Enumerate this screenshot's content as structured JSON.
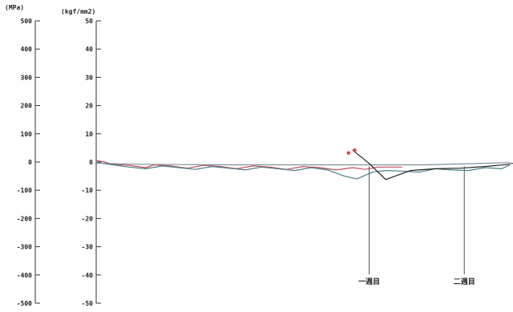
{
  "chart_data": {
    "type": "line",
    "title": "",
    "xlabel": "",
    "ylabel": "",
    "left_axis": {
      "unit": "(MPa)",
      "ticks": [
        500,
        400,
        300,
        200,
        100,
        0,
        -100,
        -200,
        -300,
        -400,
        -500
      ],
      "ylim": [
        -500,
        500
      ]
    },
    "right_axis": {
      "unit": "(kgf/mm2)",
      "ticks": [
        50,
        40,
        30,
        20,
        10,
        0,
        -10,
        -20,
        -30,
        -40,
        -50
      ],
      "ylim": [
        -50,
        50
      ]
    },
    "xlim": [
      0,
      100
    ],
    "grid": false,
    "legend": "none",
    "series": [
      {
        "color": "#c0505a",
        "x": [
          0,
          2,
          4,
          8,
          12,
          14,
          18,
          22,
          26,
          30,
          34,
          38,
          42,
          46,
          50,
          54,
          58,
          62,
          65,
          68,
          71,
          74
        ],
        "y": [
          5,
          0,
          -8,
          -12,
          -20,
          -10,
          -14,
          -22,
          -12,
          -16,
          -24,
          -14,
          -18,
          -26,
          -16,
          -20,
          -28,
          -20,
          -26,
          -18,
          -18,
          -18
        ]
      },
      {
        "color": "#4a7e86",
        "x": [
          0,
          2,
          4,
          8,
          12,
          16,
          20,
          24,
          28,
          32,
          36,
          40,
          44,
          48,
          52,
          56,
          60,
          63,
          67,
          70,
          74,
          78,
          82,
          86,
          90,
          94,
          98,
          100
        ],
        "y": [
          0,
          -6,
          -10,
          -18,
          -24,
          -14,
          -20,
          -26,
          -16,
          -22,
          -28,
          -18,
          -24,
          -30,
          -20,
          -28,
          -50,
          -60,
          -35,
          -30,
          -32,
          -36,
          -24,
          -28,
          -30,
          -20,
          -24,
          -10
        ]
      },
      {
        "color": "#7f8f9a",
        "x": [
          0,
          10,
          20,
          30,
          40,
          50,
          60,
          70,
          80,
          90,
          100
        ],
        "y": [
          -4,
          -8,
          -9,
          -10,
          -10,
          -10,
          -10,
          -10,
          -10,
          -6,
          -2
        ]
      },
      {
        "color": "#222222",
        "x": [
          62,
          66,
          70,
          76,
          82,
          88,
          94,
          100
        ],
        "y": [
          42,
          -5,
          -62,
          -30,
          -24,
          -22,
          -16,
          -8
        ]
      }
    ],
    "markers": [
      {
        "color": "#e04040",
        "x": 61,
        "y": 32
      },
      {
        "color": "#e04040",
        "x": 62.5,
        "y": 42
      }
    ],
    "annotations": [
      {
        "text": "一週目",
        "x": 66
      },
      {
        "text": "二週目",
        "x": 89
      }
    ]
  }
}
